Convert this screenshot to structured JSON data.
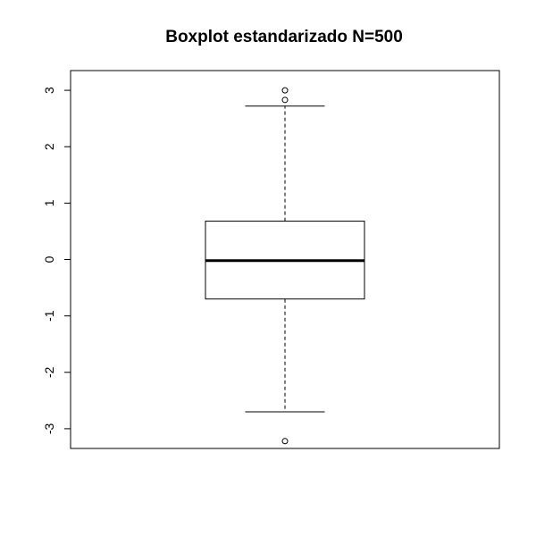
{
  "chart_data": {
    "type": "boxplot",
    "title": "Boxplot estandarizado N=500",
    "xlabel": "",
    "ylabel": "",
    "ylim": [
      -3.35,
      3.35
    ],
    "y_ticks": [
      -3,
      -2,
      -1,
      0,
      1,
      2,
      3
    ],
    "y_tick_labels": [
      "-3",
      "-2",
      "-1",
      "0",
      "1",
      "2",
      "3"
    ],
    "box": {
      "whisker_low": -2.7,
      "q1": -0.7,
      "median": -0.02,
      "q3": 0.68,
      "whisker_high": 2.72
    },
    "outliers": [
      3.0,
      2.83,
      -3.22
    ],
    "grid": false,
    "legend": "none"
  }
}
